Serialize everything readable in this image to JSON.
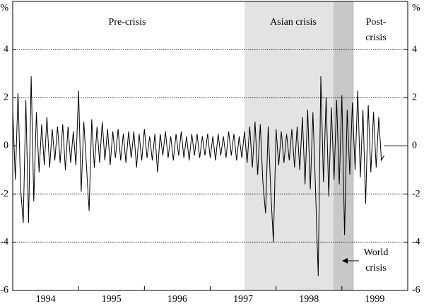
{
  "chart_data": {
    "type": "line",
    "y_label": "%",
    "annotations": [
      "Pre-crisis",
      "Asian crisis",
      "Post-",
      "crisis",
      "World",
      "crisis"
    ],
    "shaded": [
      {
        "start": 1997.52,
        "end": 1998.87,
        "color": "#e3e3e3"
      },
      {
        "start": 1998.87,
        "end": 1999.18,
        "color": "#c8c8c8"
      }
    ],
    "xlim": [
      1994,
      2000
    ],
    "xticks": [
      {
        "value": 1994.5,
        "label": "1994"
      },
      {
        "value": 1995.5,
        "label": "1995"
      },
      {
        "value": 1996.5,
        "label": "1996"
      },
      {
        "value": 1997.5,
        "label": "1997"
      },
      {
        "value": 1998.5,
        "label": "1998"
      },
      {
        "value": 1999.5,
        "label": "1999"
      }
    ],
    "ylim": [
      -6,
      6
    ],
    "yticks": [
      -6,
      -4,
      -2,
      0,
      2,
      4
    ],
    "grid": true,
    "color": "#000000",
    "x": [
      1994,
      1994.04,
      1994.08,
      1994.12,
      1994.16,
      1994.2,
      1994.24,
      1994.28,
      1994.32,
      1994.36,
      1994.4,
      1994.44,
      1994.48,
      1994.52,
      1994.56,
      1994.6,
      1994.64,
      1994.68,
      1994.72,
      1994.76,
      1994.8,
      1994.84,
      1994.88,
      1994.92,
      1994.96,
      1995,
      1995.04,
      1995.08,
      1995.12,
      1995.16,
      1995.2,
      1995.24,
      1995.28,
      1995.32,
      1995.36,
      1995.4,
      1995.44,
      1995.48,
      1995.52,
      1995.56,
      1995.6,
      1995.64,
      1995.68,
      1995.72,
      1995.76,
      1995.8,
      1995.84,
      1995.88,
      1995.92,
      1995.96,
      1996,
      1996.04,
      1996.08,
      1996.12,
      1996.16,
      1996.2,
      1996.24,
      1996.28,
      1996.32,
      1996.36,
      1996.4,
      1996.44,
      1996.48,
      1996.52,
      1996.56,
      1996.6,
      1996.64,
      1996.68,
      1996.72,
      1996.76,
      1996.8,
      1996.84,
      1996.88,
      1996.92,
      1996.96,
      1997,
      1997.04,
      1997.08,
      1997.12,
      1997.16,
      1997.2,
      1997.24,
      1997.28,
      1997.32,
      1997.36,
      1997.4,
      1997.44,
      1997.48,
      1997.52,
      1997.56,
      1997.6,
      1997.64,
      1997.68,
      1997.72,
      1997.76,
      1997.8,
      1997.84,
      1997.88,
      1997.92,
      1997.96,
      1998,
      1998.04,
      1998.08,
      1998.12,
      1998.16,
      1998.2,
      1998.24,
      1998.28,
      1998.32,
      1998.36,
      1998.4,
      1998.44,
      1998.48,
      1998.52,
      1998.56,
      1998.6,
      1998.64,
      1998.68,
      1998.72,
      1998.76,
      1998.8,
      1998.84,
      1998.88,
      1998.92,
      1998.96,
      1999,
      1999.04,
      1999.08,
      1999.12,
      1999.16,
      1999.2,
      1999.24,
      1999.28,
      1999.32,
      1999.36,
      1999.4,
      1999.44,
      1999.48,
      1999.52,
      1999.56,
      1999.6,
      1999.64
    ],
    "values": [
      1.5,
      -1.4,
      2.2,
      -1.8,
      -3.2,
      1.9,
      -3.2,
      2.9,
      -2.3,
      1.4,
      -1.1,
      0.9,
      -0.8,
      1.2,
      -0.9,
      0.7,
      -0.6,
      0.8,
      -0.7,
      0.9,
      -1.0,
      0.8,
      -0.7,
      0.6,
      -0.8,
      2.3,
      -1.9,
      1.0,
      -0.8,
      -2.7,
      1.1,
      -0.9,
      0.8,
      -0.7,
      1.0,
      -0.6,
      0.7,
      -0.8,
      0.6,
      -0.5,
      0.7,
      -0.6,
      0.5,
      -0.7,
      0.6,
      -0.5,
      0.6,
      -0.9,
      0.5,
      -0.6,
      0.7,
      -0.5,
      0.4,
      -0.6,
      0.5,
      -1.1,
      0.5,
      -0.4,
      0.6,
      -0.5,
      0.4,
      -0.6,
      0.5,
      -0.4,
      0.6,
      -0.5,
      0.4,
      -0.6,
      0.5,
      -0.4,
      0.5,
      -0.5,
      0.4,
      -0.4,
      0.5,
      -0.5,
      0.4,
      -0.6,
      0.5,
      -0.4,
      0.4,
      -0.5,
      0.6,
      -0.4,
      0.5,
      -0.6,
      0.4,
      -0.5,
      0.6,
      -0.7,
      0.8,
      -0.9,
      1.0,
      -1.2,
      0.9,
      -1.5,
      -2.8,
      0.8,
      -1.9,
      -4.0,
      0.7,
      -0.8,
      0.6,
      -0.7,
      0.5,
      -0.6,
      0.7,
      -0.9,
      0.8,
      -1.0,
      1.2,
      -1.6,
      1.5,
      -1.8,
      1.4,
      -1.9,
      -5.4,
      2.9,
      -1.5,
      2.0,
      -2.1,
      1.6,
      -1.4,
      1.9,
      -1.6,
      2.1,
      -3.7,
      1.5,
      -1.2,
      1.8,
      -1.0,
      2.3,
      -1.3,
      1.5,
      -2.4,
      1.7,
      -1.1,
      1.4,
      -0.9,
      1.2,
      -0.6,
      -0.4
    ]
  }
}
